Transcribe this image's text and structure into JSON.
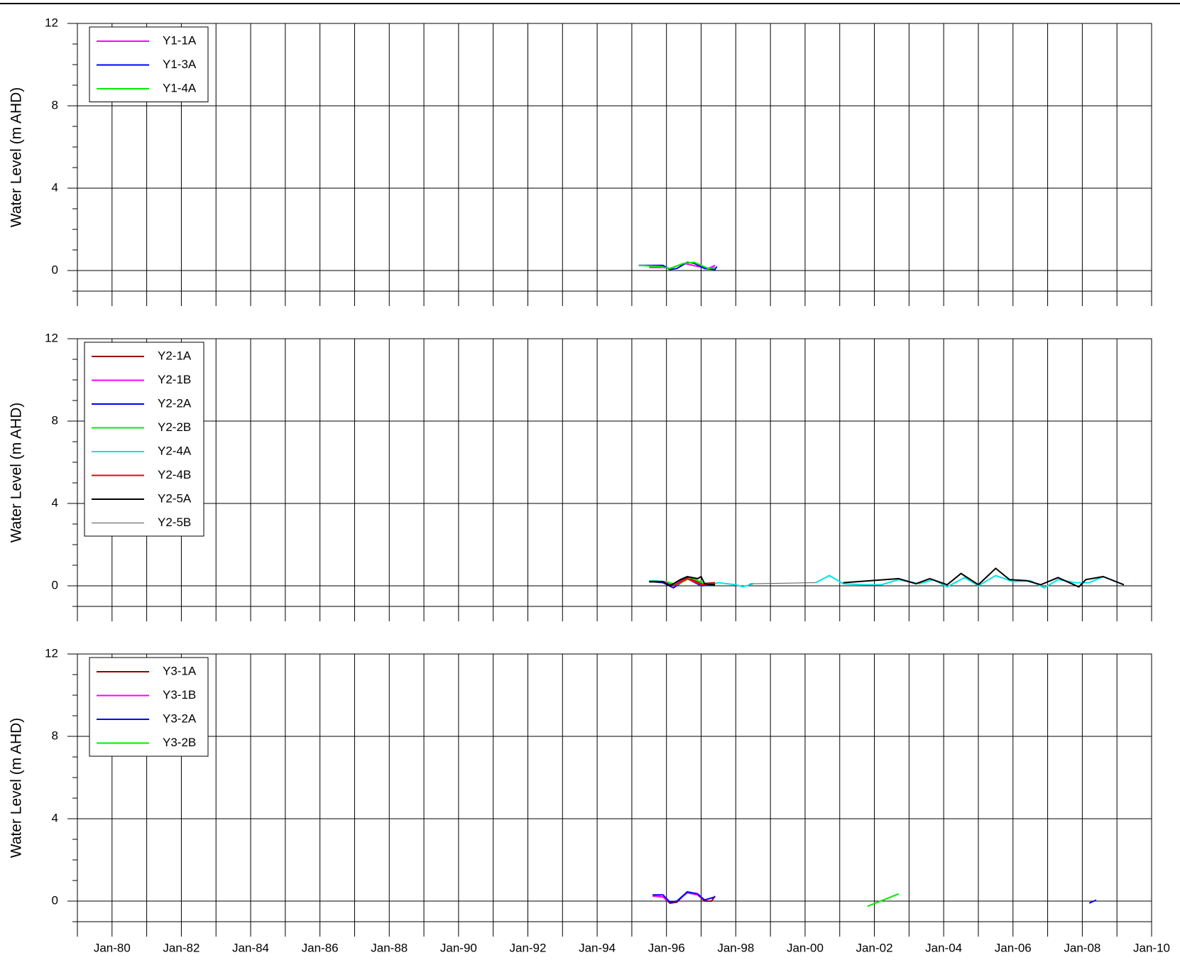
{
  "chart_data": [
    {
      "type": "line",
      "ylabel": "Water Level (m AHD)",
      "xlim": [
        1979,
        2010
      ],
      "ylim": [
        -1,
        12
      ],
      "yticks": [
        0,
        4,
        8,
        12
      ],
      "yminor_ticks": [
        -1,
        1,
        2,
        3,
        5,
        6,
        7,
        9,
        10,
        11
      ],
      "xticks": [
        1980,
        1982,
        1984,
        1986,
        1988,
        1990,
        1992,
        1994,
        1996,
        1998,
        2000,
        2002,
        2004,
        2006,
        2008,
        2010
      ],
      "xminor_ticks": [
        1979,
        1981,
        1983,
        1985,
        1987,
        1989,
        1991,
        1993,
        1995,
        1997,
        1999,
        2001,
        2003,
        2005,
        2007,
        2009
      ],
      "grid": true,
      "legend": "upper left",
      "series": [
        {
          "name": "Y1-1A",
          "color": "#ff00ff",
          "x": [
            1995.5,
            1995.9,
            1996.1,
            1996.5,
            1996.9,
            1997.2,
            1997.4
          ],
          "values": [
            0.15,
            0.15,
            0.1,
            0.35,
            0.2,
            0.1,
            0.25
          ]
        },
        {
          "name": "Y1-3A",
          "color": "#0000ff",
          "x": [
            1995.2,
            1995.9,
            1996.1,
            1996.3,
            1996.6,
            1996.8,
            1997.1,
            1997.4,
            1997.45
          ],
          "values": [
            0.25,
            0.25,
            0.05,
            0.1,
            0.4,
            0.35,
            0.1,
            0.05,
            0.2
          ]
        },
        {
          "name": "Y1-4A",
          "color": "#00ee00",
          "x": [
            1995.2,
            1995.8,
            1996.1,
            1996.5,
            1996.8,
            1997.2,
            1997.4
          ],
          "values": [
            0.25,
            0.2,
            0.1,
            0.35,
            0.4,
            0.1,
            0.15
          ]
        }
      ]
    },
    {
      "type": "line",
      "ylabel": "Water Level (m AHD)",
      "xlim": [
        1979,
        2010
      ],
      "ylim": [
        -1,
        12
      ],
      "yticks": [
        0,
        4,
        8,
        12
      ],
      "yminor_ticks": [
        -1,
        1,
        2,
        3,
        5,
        6,
        7,
        9,
        10,
        11
      ],
      "xticks": [
        1980,
        1982,
        1984,
        1986,
        1988,
        1990,
        1992,
        1994,
        1996,
        1998,
        2000,
        2002,
        2004,
        2006,
        2008,
        2010
      ],
      "xminor_ticks": [
        1979,
        1981,
        1983,
        1985,
        1987,
        1989,
        1991,
        1993,
        1995,
        1997,
        1999,
        2001,
        2003,
        2005,
        2007,
        2009
      ],
      "grid": true,
      "legend": "upper left",
      "series": [
        {
          "name": "Y2-1A",
          "color": "#990000",
          "x": [
            1995.5,
            1995.9,
            1996.1,
            1996.6,
            1997.0,
            1997.4
          ],
          "values": [
            0.2,
            0.2,
            0.0,
            0.4,
            0.1,
            0.15
          ]
        },
        {
          "name": "Y2-1B",
          "color": "#ff00ff",
          "x": [
            1995.6,
            1995.9,
            1996.2,
            1996.6,
            1997.0,
            1997.4
          ],
          "values": [
            0.25,
            0.2,
            0.05,
            0.35,
            0.05,
            0.1
          ]
        },
        {
          "name": "Y2-2A",
          "color": "#0000ff",
          "x": [
            1995.6,
            1995.9,
            1996.2,
            1996.6,
            1997.0,
            1997.4
          ],
          "values": [
            0.2,
            0.15,
            -0.1,
            0.35,
            0.0,
            0.05
          ]
        },
        {
          "name": "Y2-2B",
          "color": "#00ee00",
          "x": [
            1995.6,
            1996.0,
            1996.3,
            1996.7,
            1997.1,
            1997.4
          ],
          "values": [
            0.25,
            0.2,
            0.05,
            0.4,
            0.1,
            0.1
          ]
        },
        {
          "name": "Y2-4A",
          "color": "#00e5e5",
          "x": [
            1995.5,
            1996.0,
            1996.2,
            1996.6,
            1997.0,
            1997.4,
            1997.5,
            1998.0,
            1998.2,
            1998.5,
            null,
            2000.3,
            2000.7,
            2001.1,
            2001.7,
            2002.2,
            2002.7,
            2003.3,
            2003.7,
            2004.1,
            2004.6,
            2005.0,
            2005.5,
            2006.0,
            2006.5,
            2006.9,
            2007.3,
            2007.8,
            2008.2,
            2008.6,
            2009.2
          ],
          "values": [
            0.25,
            0.2,
            0.0,
            0.35,
            0.05,
            0.1,
            0.15,
            0.05,
            -0.05,
            0.1,
            null,
            0.15,
            0.5,
            0.1,
            0.05,
            0.05,
            0.3,
            0.1,
            0.3,
            -0.05,
            0.4,
            0.0,
            0.5,
            0.2,
            0.25,
            -0.1,
            0.3,
            0.15,
            0.15,
            0.45,
            0.05
          ]
        },
        {
          "name": "Y2-4B",
          "color": "#ff0000",
          "x": [
            1995.5,
            1995.9,
            1996.2,
            1996.6,
            1997.0,
            1997.4
          ],
          "values": [
            0.2,
            0.2,
            0.0,
            0.35,
            0.05,
            0.1
          ]
        },
        {
          "name": "Y2-5A",
          "color": "#000000",
          "x": [
            1995.5,
            1995.9,
            1996.1,
            1996.4,
            1996.6,
            1996.9,
            1997.0,
            1997.1,
            1997.4,
            null,
            2001.1,
            2002.7,
            2003.2,
            2003.6,
            2004.1,
            2004.5,
            2005.0,
            2005.5,
            2005.9,
            2006.4,
            2006.8,
            2007.3,
            2007.9,
            2008.1,
            2008.6,
            2009.2
          ],
          "values": [
            0.2,
            0.2,
            0.0,
            0.3,
            0.45,
            0.35,
            0.45,
            0.1,
            0.05,
            null,
            0.15,
            0.35,
            0.1,
            0.35,
            0.05,
            0.6,
            0.05,
            0.85,
            0.3,
            0.25,
            0.05,
            0.4,
            -0.05,
            0.3,
            0.45,
            0.05
          ]
        },
        {
          "name": "Y2-5B",
          "color": "#555555",
          "x": [
            1998.4,
            2000.3
          ],
          "values": [
            0.1,
            0.15
          ]
        }
      ]
    },
    {
      "type": "line",
      "ylabel": "Water Level (m AHD)",
      "xlim": [
        1979,
        2010
      ],
      "ylim": [
        -1,
        12
      ],
      "yticks": [
        0,
        4,
        8,
        12
      ],
      "yminor_ticks": [
        -1,
        1,
        2,
        3,
        5,
        6,
        7,
        9,
        10,
        11
      ],
      "xticks": [
        {
          "value": 1980,
          "label": "Jan-80"
        },
        {
          "value": 1982,
          "label": "Jan-82"
        },
        {
          "value": 1984,
          "label": "Jan-84"
        },
        {
          "value": 1986,
          "label": "Jan-86"
        },
        {
          "value": 1988,
          "label": "Jan-88"
        },
        {
          "value": 1990,
          "label": "Jan-90"
        },
        {
          "value": 1992,
          "label": "Jan-92"
        },
        {
          "value": 1994,
          "label": "Jan-94"
        },
        {
          "value": 1996,
          "label": "Jan-96"
        },
        {
          "value": 1998,
          "label": "Jan-98"
        },
        {
          "value": 2000,
          "label": "Jan-00"
        },
        {
          "value": 2002,
          "label": "Jan-02"
        },
        {
          "value": 2004,
          "label": "Jan-04"
        },
        {
          "value": 2006,
          "label": "Jan-06"
        },
        {
          "value": 2008,
          "label": "Jan-08"
        },
        {
          "value": 2010,
          "label": "Jan-10"
        }
      ],
      "xminor_ticks": [
        1979,
        1981,
        1983,
        1985,
        1987,
        1989,
        1991,
        1993,
        1995,
        1997,
        1999,
        2001,
        2003,
        2005,
        2007,
        2009
      ],
      "grid": true,
      "legend": "upper left",
      "series": [
        {
          "name": "Y3-1A",
          "color": "#990000",
          "x": [
            1995.6,
            1995.9,
            1996.1,
            1996.3,
            1996.6,
            1996.9,
            1997.1,
            1997.3,
            1997.4
          ],
          "values": [
            0.25,
            0.2,
            -0.1,
            -0.05,
            0.45,
            0.3,
            0.0,
            0.0,
            0.25
          ]
        },
        {
          "name": "Y3-1B",
          "color": "#ff00ff",
          "x": [
            1995.6,
            1995.9,
            1996.1,
            1996.3,
            1996.6,
            1996.9,
            1997.1,
            1997.4
          ],
          "values": [
            0.25,
            0.2,
            -0.05,
            0.0,
            0.4,
            0.3,
            0.05,
            0.2
          ]
        },
        {
          "name": "Y3-2A",
          "color": "#0000ff",
          "x": [
            1995.6,
            1995.9,
            1996.1,
            1996.3,
            1996.6,
            1996.9,
            1997.1,
            1997.4,
            null,
            2008.2,
            2008.4
          ],
          "values": [
            0.3,
            0.3,
            -0.05,
            0.0,
            0.45,
            0.35,
            0.05,
            0.2,
            null,
            -0.1,
            0.05
          ]
        },
        {
          "name": "Y3-2B",
          "color": "#00ee00",
          "x": [
            2001.8,
            2002.7
          ],
          "values": [
            -0.25,
            0.35
          ]
        }
      ]
    }
  ]
}
